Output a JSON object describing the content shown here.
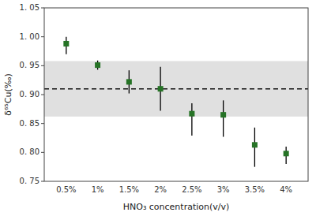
{
  "chart_data": {
    "type": "scatter",
    "xlabel": "HNO₃ concentration(v/v)",
    "ylabel": "δ⁶⁵Cu(‰)",
    "categories": [
      "0.5%",
      "1%",
      "1.5%",
      "2%",
      "2.5%",
      "3%",
      "3.5%",
      "4%"
    ],
    "values": [
      0.988,
      0.951,
      0.922,
      0.91,
      0.867,
      0.865,
      0.813,
      0.798
    ],
    "error_upper": [
      0.012,
      0.008,
      0.02,
      0.038,
      0.018,
      0.025,
      0.03,
      0.012
    ],
    "error_lower": [
      0.018,
      0.008,
      0.02,
      0.038,
      0.038,
      0.038,
      0.038,
      0.018
    ],
    "color": "#267326",
    "marker": "square",
    "reference_line": {
      "value": 0.91,
      "color": "#111111",
      "line_style": "dashed"
    },
    "band": {
      "lower": 0.862,
      "upper": 0.958,
      "color": "#e0e0e0"
    },
    "ylim": [
      0.75,
      1.05
    ],
    "yticks": [
      {
        "value": 0.75,
        "label": "0. 75"
      },
      {
        "value": 0.8,
        "label": "0. 80"
      },
      {
        "value": 0.85,
        "label": "0. 85"
      },
      {
        "value": 0.9,
        "label": "0. 90"
      },
      {
        "value": 0.95,
        "label": "0. 95"
      },
      {
        "value": 1.0,
        "label": "1. 00"
      },
      {
        "value": 1.05,
        "label": "1. 05"
      }
    ],
    "grid": false
  }
}
